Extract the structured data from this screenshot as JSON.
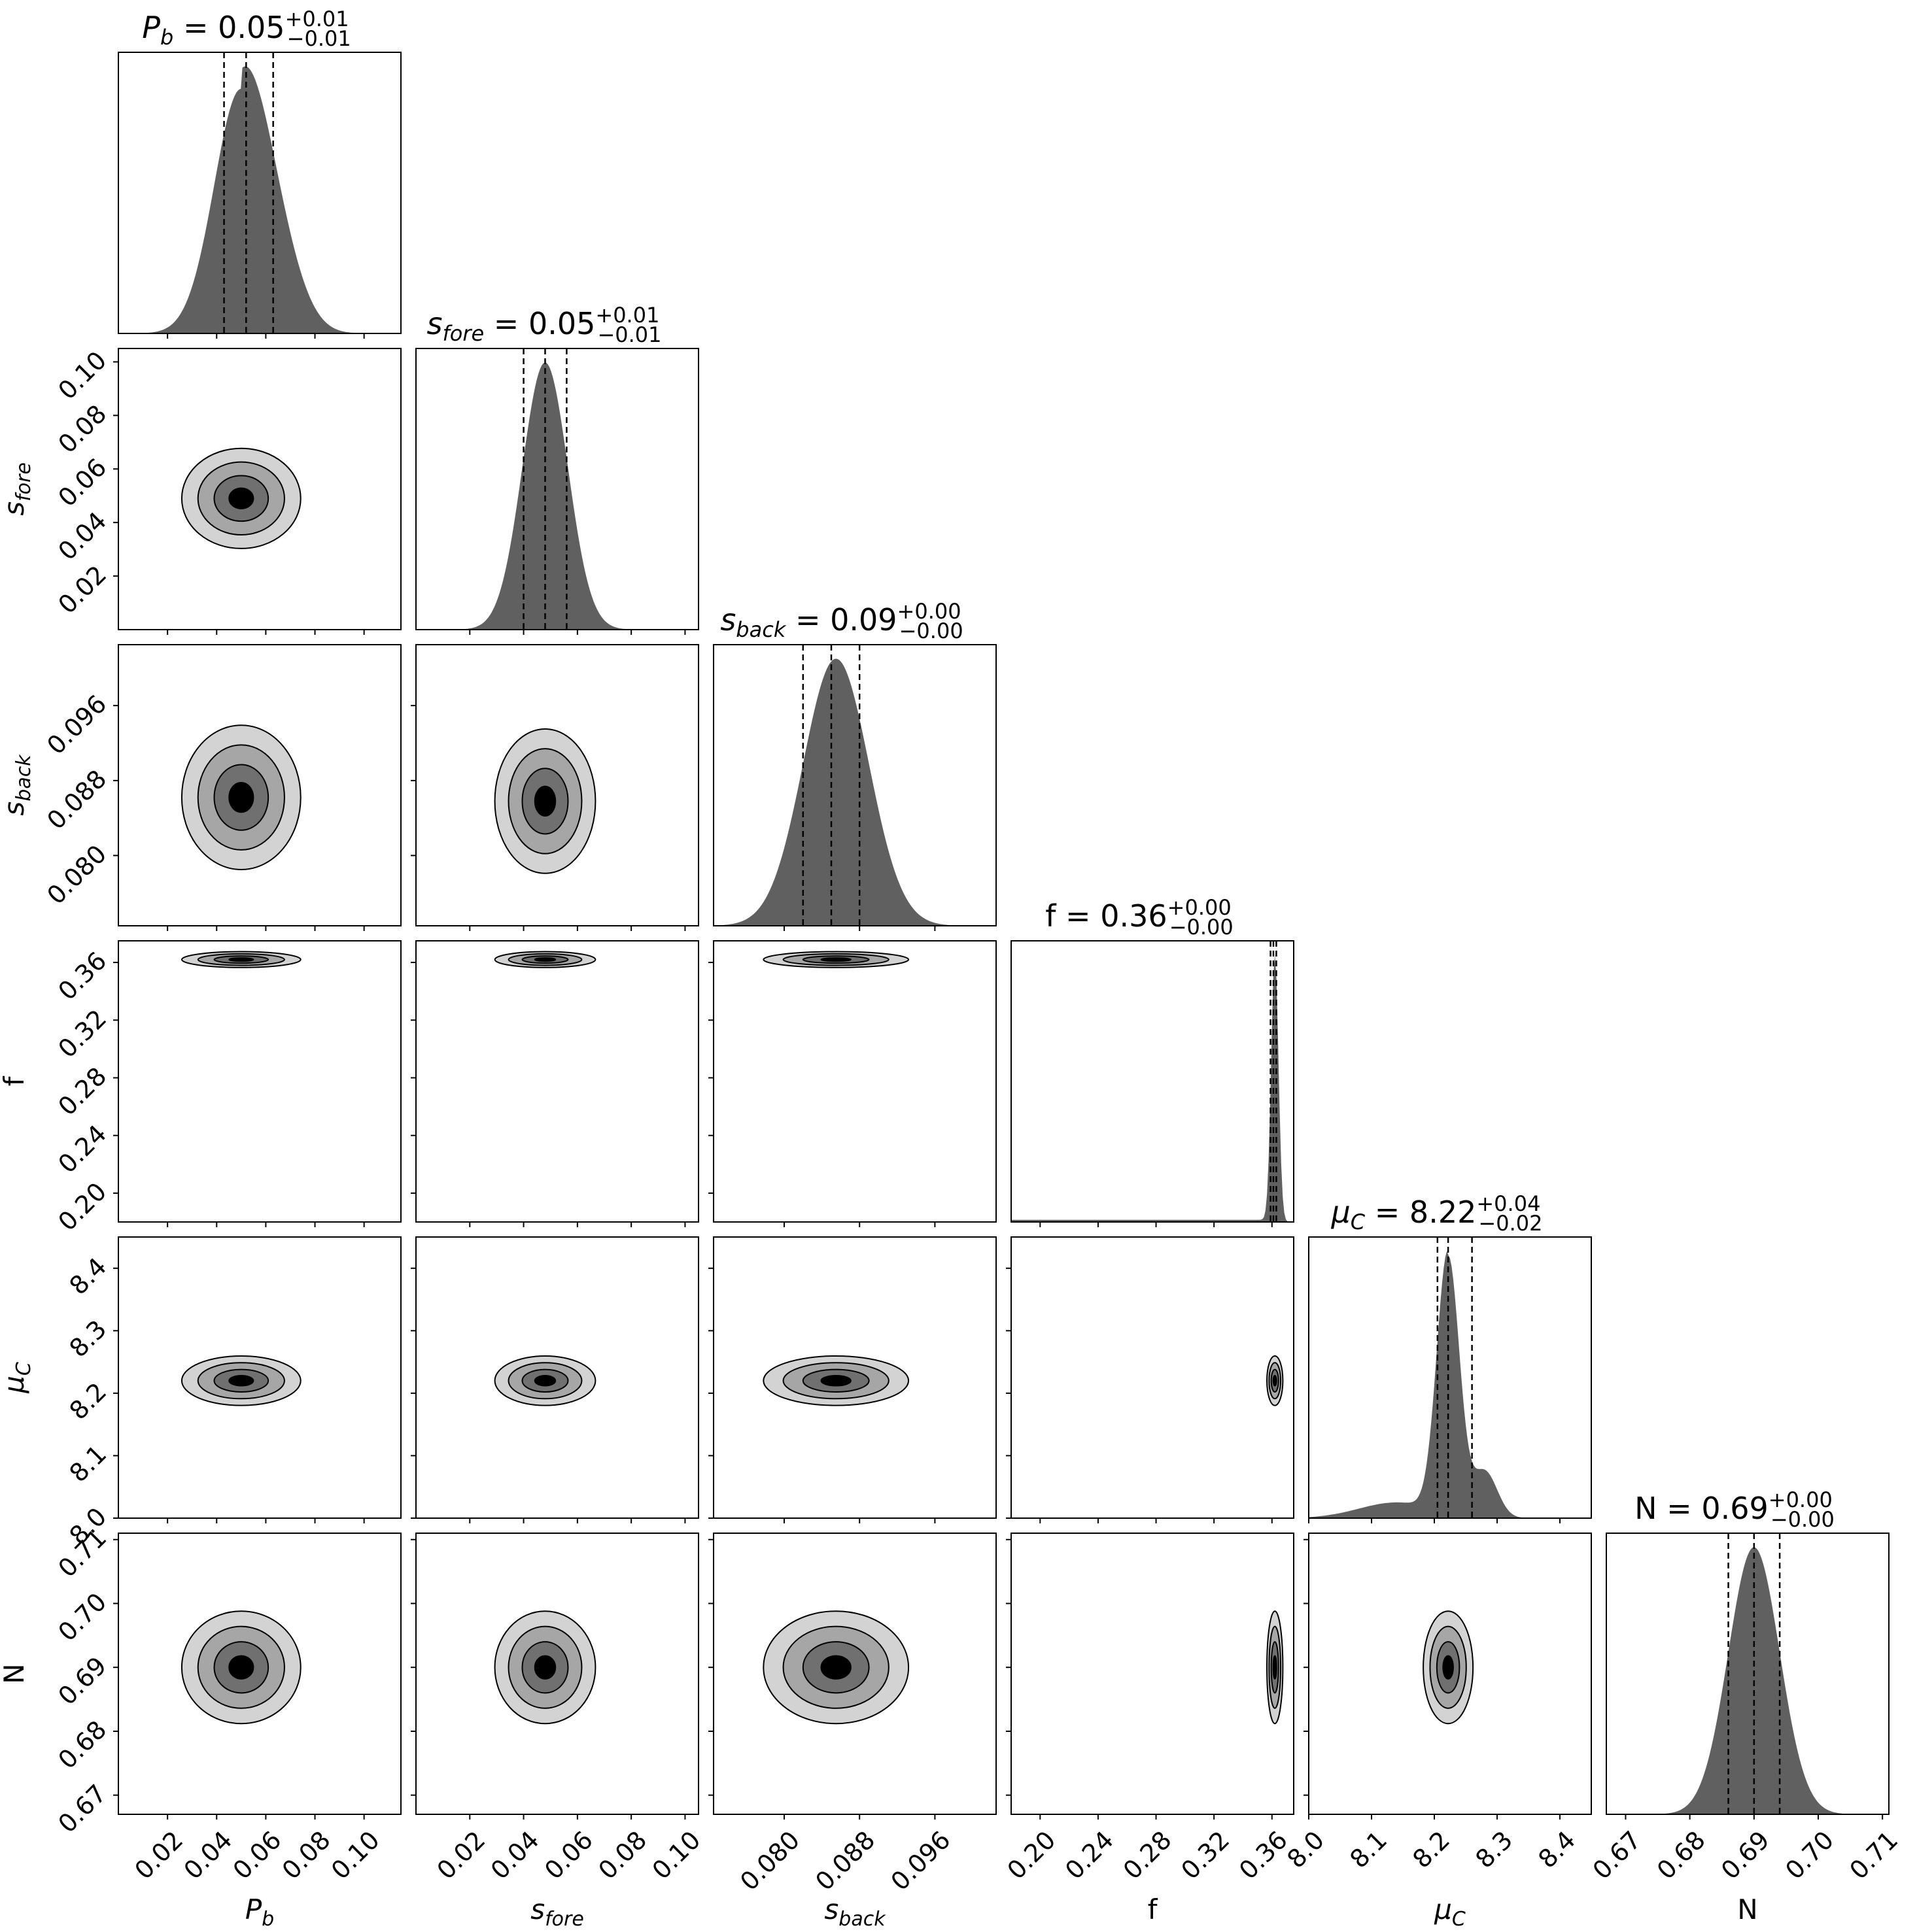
{
  "chart_data": {
    "type": "corner",
    "parameters": [
      {
        "key": "Pb",
        "label": "P",
        "label_sub": "b",
        "ticks": [
          0.02,
          0.04,
          0.06,
          0.08,
          0.1
        ],
        "range": [
          0.0,
          0.115
        ],
        "marginal_peak": 0.05,
        "marginal_sigma": 0.011,
        "quantiles": [
          0.043,
          0.052,
          0.063
        ],
        "title_value": "0.05",
        "title_plus": "+0.01",
        "title_minus": "−0.01"
      },
      {
        "key": "sfore",
        "label": "s",
        "label_sub": "fore",
        "ticks": [
          0.02,
          0.04,
          0.06,
          0.08,
          0.1
        ],
        "range": [
          0.0,
          0.105
        ],
        "marginal_peak": 0.048,
        "marginal_sigma": 0.0085,
        "quantiles": [
          0.04,
          0.048,
          0.056
        ],
        "title_value": "0.05",
        "title_plus": "+0.01",
        "title_minus": "−0.01"
      },
      {
        "key": "sback",
        "label": "s",
        "label_sub": "back",
        "ticks": [
          0.08,
          0.088,
          0.096
        ],
        "range": [
          0.0725,
          0.1025
        ],
        "marginal_peak": 0.0855,
        "marginal_sigma": 0.0035,
        "quantiles": [
          0.082,
          0.085,
          0.088
        ],
        "title_value": "0.09",
        "title_plus": "+0.00",
        "title_minus": "−0.00"
      },
      {
        "key": "f",
        "label": "f",
        "label_sub": "",
        "ticks": [
          0.2,
          0.24,
          0.28,
          0.32,
          0.36
        ],
        "range": [
          0.18,
          0.375
        ],
        "marginal_peak": 0.362,
        "marginal_sigma": 0.0025,
        "quantiles": [
          0.359,
          0.361,
          0.363
        ],
        "title_value": "0.36",
        "title_plus": "+0.00",
        "title_minus": "−0.00"
      },
      {
        "key": "muC",
        "label": "μ",
        "label_sub": "C",
        "ticks": [
          8.0,
          8.1,
          8.2,
          8.3,
          8.4
        ],
        "range": [
          8.0,
          8.45
        ],
        "marginal_peak": 8.222,
        "marginal_sigma": 0.018,
        "quantiles": [
          8.205,
          8.222,
          8.26
        ],
        "title_value": "8.22",
        "title_plus": "+0.04",
        "title_minus": "−0.02"
      },
      {
        "key": "N",
        "label": "N",
        "label_sub": "",
        "ticks": [
          0.67,
          0.68,
          0.69,
          0.7,
          0.71
        ],
        "range": [
          0.667,
          0.711
        ],
        "marginal_peak": 0.69,
        "marginal_sigma": 0.004,
        "quantiles": [
          0.686,
          0.69,
          0.694
        ],
        "title_value": "0.69",
        "title_plus": "+0.00",
        "title_minus": "−0.00"
      }
    ],
    "contour_centers": {
      "1-0": [
        0.05,
        0.049
      ],
      "2-0": [
        0.05,
        0.0862
      ],
      "2-1": [
        0.048,
        0.0858
      ],
      "3-0": [
        0.05,
        0.362
      ],
      "3-1": [
        0.048,
        0.362
      ],
      "3-2": [
        0.0855,
        0.362
      ],
      "4-0": [
        0.05,
        8.22
      ],
      "4-1": [
        0.048,
        8.22
      ],
      "4-2": [
        0.0855,
        8.22
      ],
      "4-3": [
        0.362,
        8.22
      ],
      "5-0": [
        0.05,
        0.69
      ],
      "5-1": [
        0.048,
        0.69
      ],
      "5-2": [
        0.0855,
        0.69
      ],
      "5-3": [
        0.362,
        0.69
      ],
      "5-4": [
        8.222,
        0.69
      ]
    },
    "grid": false,
    "colors": {
      "fill": "#606060",
      "contour_levels": [
        "#d3d3d3",
        "#a6a6a6",
        "#707070",
        "#000000"
      ],
      "line": "#000000"
    }
  }
}
